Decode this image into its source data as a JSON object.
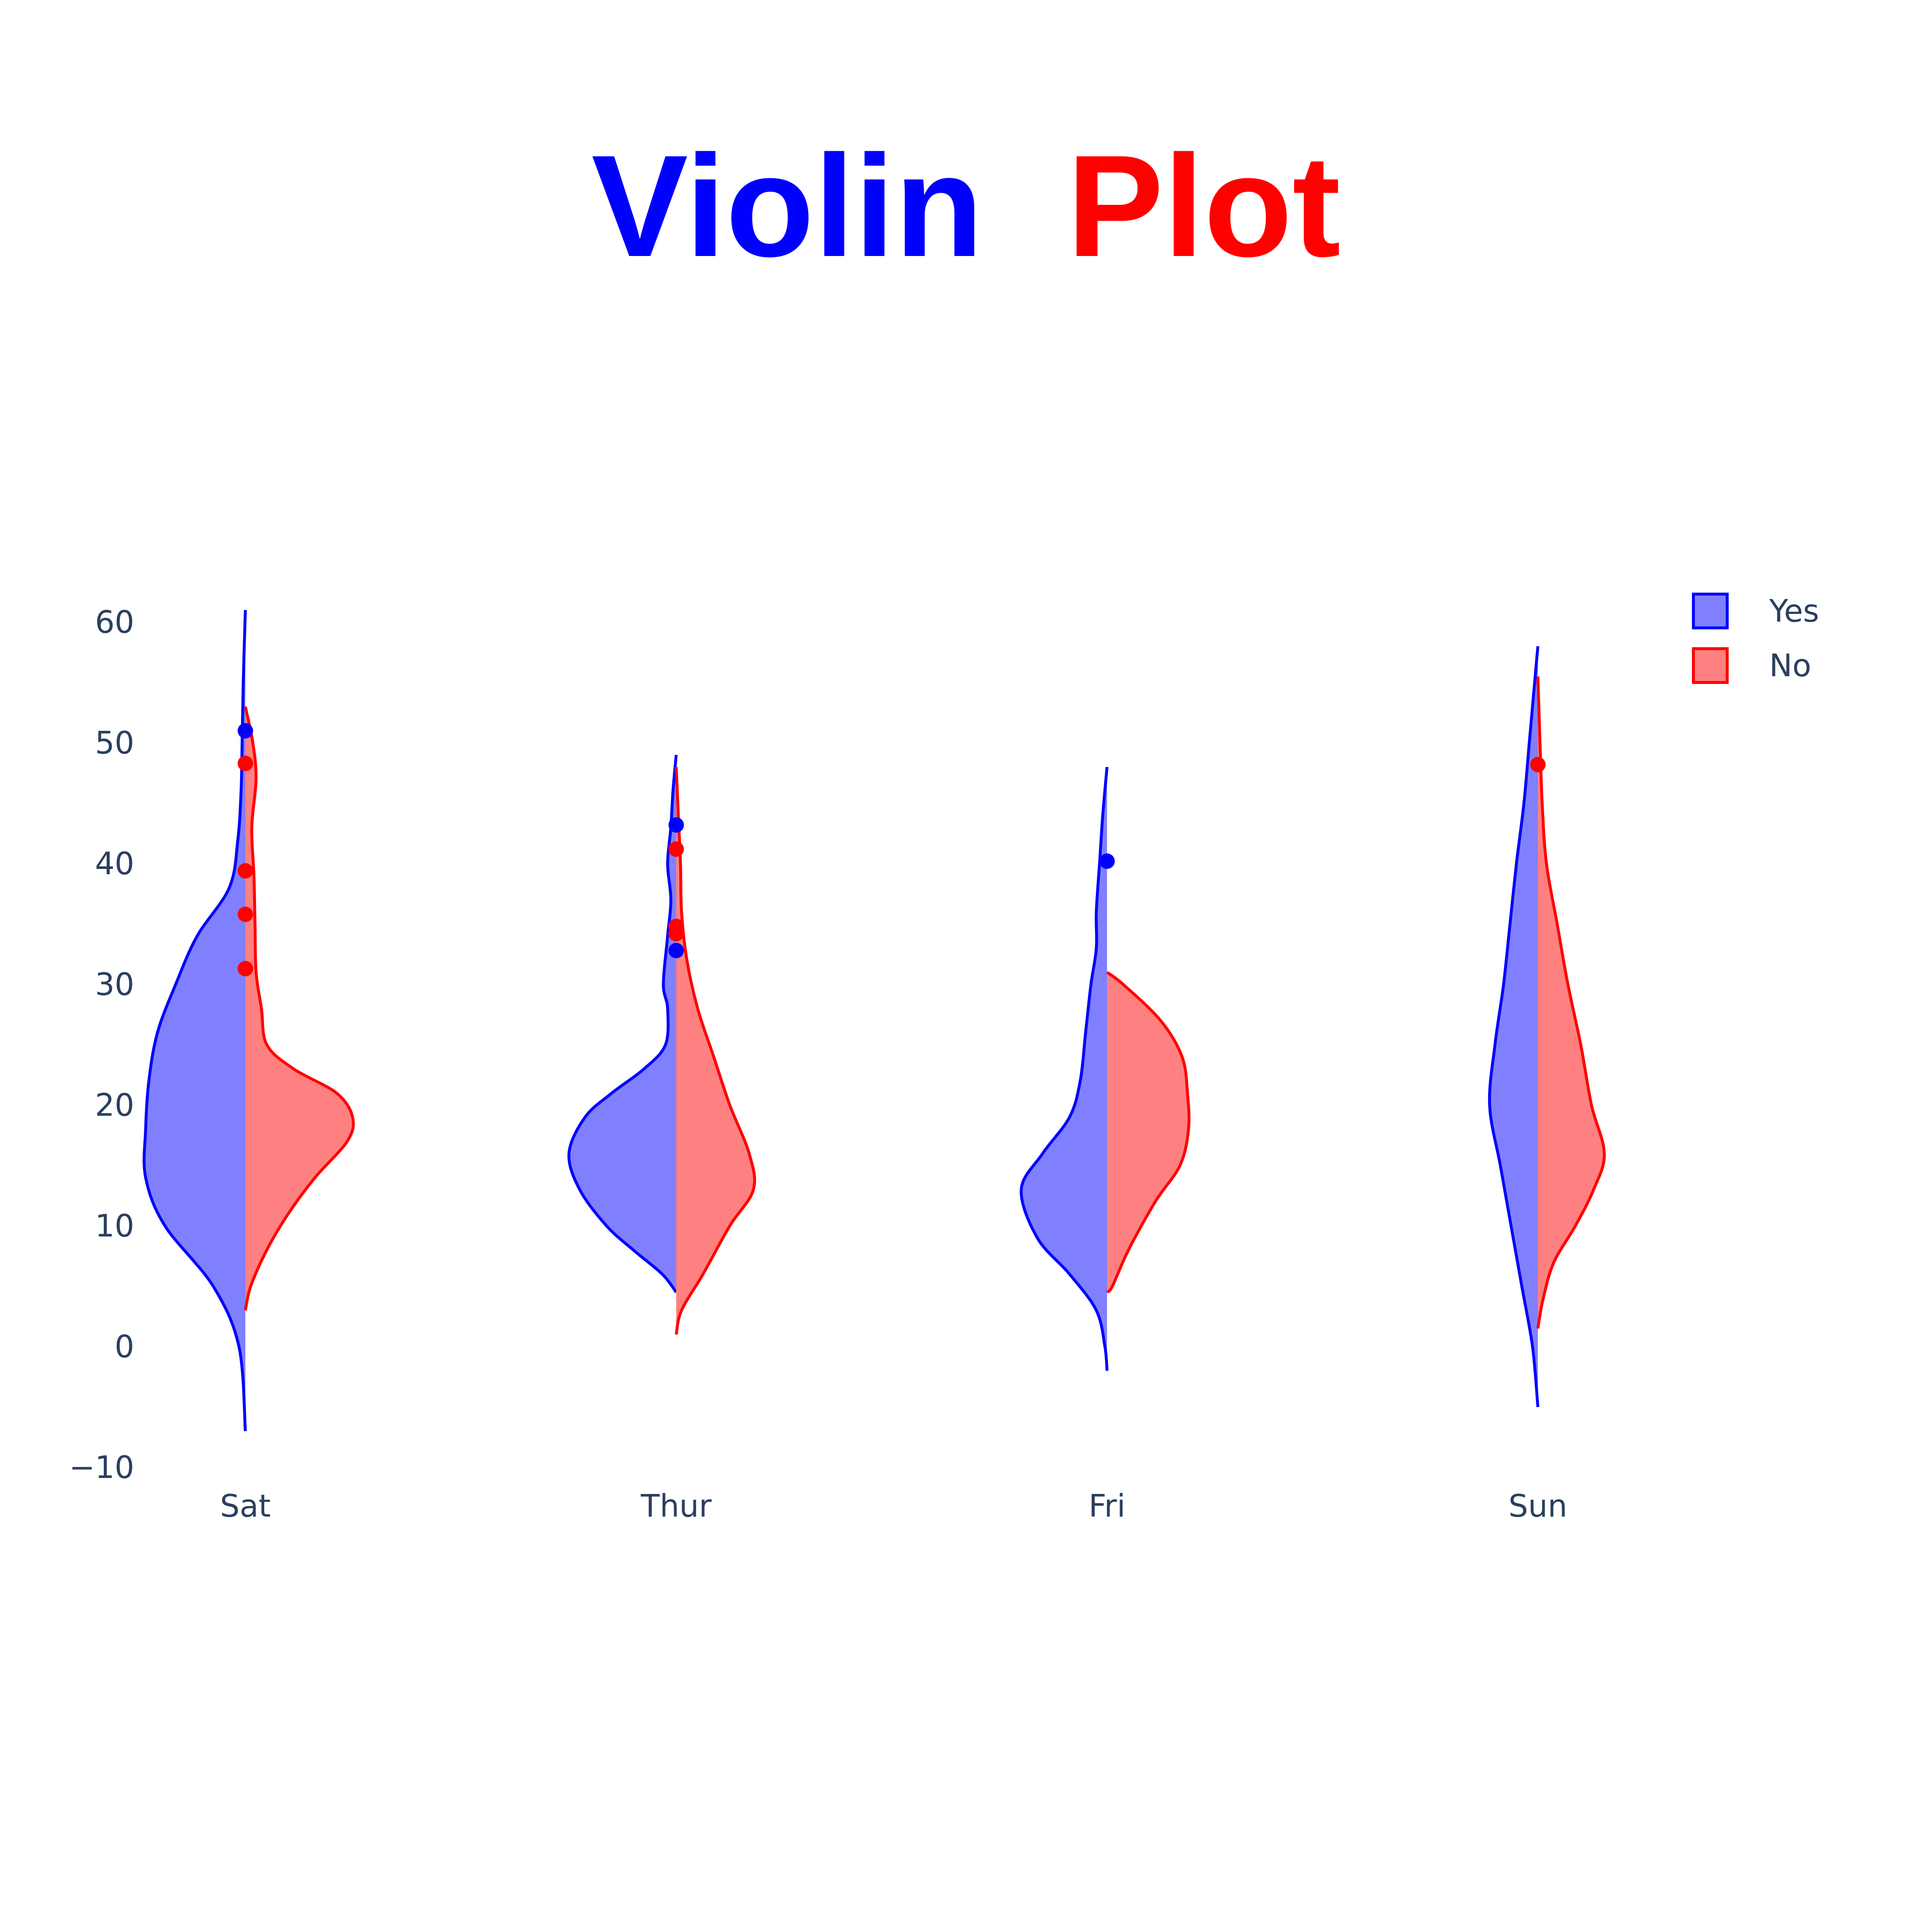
{
  "title": {
    "parts": [
      {
        "text": "Violin",
        "color": "#0000ff"
      },
      {
        "text": "Plot",
        "color": "#ff0000"
      }
    ]
  },
  "colors": {
    "yes_line": "#0000ff",
    "yes_fill": "#8080ff",
    "no_line": "#ff0000",
    "no_fill": "#ff8080",
    "tick_text": "#2a3f5f"
  },
  "chart_data": {
    "type": "violin",
    "split": true,
    "categories": [
      "Sat",
      "Thur",
      "Fri",
      "Sun"
    ],
    "yticks": [
      "−10",
      "0",
      "10",
      "20",
      "30",
      "40",
      "50",
      "60"
    ],
    "ytick_values": [
      -10,
      0,
      10,
      20,
      30,
      40,
      50,
      60
    ],
    "ylim": [
      -10,
      62
    ],
    "grid": false,
    "legend_position": "top-right",
    "series": [
      {
        "name": "Yes",
        "side": "negative",
        "line_color": "#0000ff",
        "fill_color": "#8080ff",
        "violins": [
          {
            "category": "Sat",
            "y_range": [
              -7,
              61
            ],
            "profile": [
              [
                -7,
                0.0
              ],
              [
                0,
                0.06
              ],
              [
                5,
                0.3
              ],
              [
                10,
                0.75
              ],
              [
                14,
                0.93
              ],
              [
                18,
                0.93
              ],
              [
                22,
                0.9
              ],
              [
                26,
                0.82
              ],
              [
                30,
                0.65
              ],
              [
                34,
                0.45
              ],
              [
                38,
                0.15
              ],
              [
                42,
                0.07
              ],
              [
                46,
                0.04
              ],
              [
                50,
                0.03
              ],
              [
                55,
                0.02
              ],
              [
                61,
                0.0
              ]
            ],
            "outliers": [
              51
            ]
          },
          {
            "category": "Thur",
            "y_range": [
              4.5,
              49
            ],
            "profile": [
              [
                4.5,
                0.0
              ],
              [
                6,
                0.13
              ],
              [
                8,
                0.4
              ],
              [
                10,
                0.65
              ],
              [
                13,
                0.9
              ],
              [
                16,
                1.0
              ],
              [
                19,
                0.85
              ],
              [
                21,
                0.6
              ],
              [
                23,
                0.3
              ],
              [
                25,
                0.1
              ],
              [
                28,
                0.08
              ],
              [
                30,
                0.12
              ],
              [
                34,
                0.08
              ],
              [
                37,
                0.05
              ],
              [
                40,
                0.08
              ],
              [
                43,
                0.05
              ],
              [
                46,
                0.03
              ],
              [
                49,
                0.0
              ]
            ],
            "outliers": [
              43.2,
              32.8
            ]
          },
          {
            "category": "Fri",
            "y_range": [
              -2,
              48
            ],
            "profile": [
              [
                -2,
                0.0
              ],
              [
                0,
                0.02
              ],
              [
                3,
                0.1
              ],
              [
                6,
                0.35
              ],
              [
                9,
                0.65
              ],
              [
                13,
                0.8
              ],
              [
                16,
                0.6
              ],
              [
                19,
                0.35
              ],
              [
                22,
                0.25
              ],
              [
                26,
                0.2
              ],
              [
                30,
                0.15
              ],
              [
                33,
                0.1
              ],
              [
                36,
                0.1
              ],
              [
                40,
                0.07
              ],
              [
                44,
                0.04
              ],
              [
                48,
                0.0
              ]
            ],
            "outliers": [
              40.2
            ]
          },
          {
            "category": "Sun",
            "y_range": [
              -5,
              58
            ],
            "profile": [
              [
                -5,
                0.0
              ],
              [
                0,
                0.05
              ],
              [
                5,
                0.15
              ],
              [
                10,
                0.25
              ],
              [
                15,
                0.35
              ],
              [
                20,
                0.45
              ],
              [
                25,
                0.4
              ],
              [
                30,
                0.32
              ],
              [
                35,
                0.26
              ],
              [
                40,
                0.2
              ],
              [
                45,
                0.13
              ],
              [
                50,
                0.08
              ],
              [
                55,
                0.03
              ],
              [
                58,
                0.0
              ]
            ],
            "outliers": []
          }
        ]
      },
      {
        "name": "No",
        "side": "positive",
        "line_color": "#ff0000",
        "fill_color": "#ff8080",
        "violins": [
          {
            "category": "Sat",
            "y_range": [
              3,
              53
            ],
            "profile": [
              [
                3,
                0.0
              ],
              [
                5,
                0.05
              ],
              [
                8,
                0.2
              ],
              [
                11,
                0.4
              ],
              [
                14,
                0.65
              ],
              [
                17,
                0.95
              ],
              [
                19,
                1.0
              ],
              [
                21,
                0.85
              ],
              [
                23,
                0.45
              ],
              [
                25,
                0.2
              ],
              [
                28,
                0.15
              ],
              [
                31,
                0.1
              ],
              [
                35,
                0.09
              ],
              [
                39,
                0.08
              ],
              [
                43,
                0.06
              ],
              [
                47,
                0.1
              ],
              [
                50,
                0.07
              ],
              [
                53,
                0.0
              ]
            ],
            "outliers": [
              48.3,
              39.4,
              35.8,
              31.3
            ]
          },
          {
            "category": "Thur",
            "y_range": [
              1,
              48
            ],
            "profile": [
              [
                1,
                0.0
              ],
              [
                3,
                0.05
              ],
              [
                6,
                0.25
              ],
              [
                10,
                0.5
              ],
              [
                13,
                0.72
              ],
              [
                16,
                0.68
              ],
              [
                20,
                0.5
              ],
              [
                24,
                0.35
              ],
              [
                28,
                0.2
              ],
              [
                32,
                0.1
              ],
              [
                36,
                0.05
              ],
              [
                40,
                0.04
              ],
              [
                44,
                0.02
              ],
              [
                48,
                0.0
              ]
            ],
            "outliers": [
              41.2,
              34.8,
              34.2
            ]
          },
          {
            "category": "Fri",
            "y_range": [
              4.5,
              31
            ],
            "profile": [
              [
                4.5,
                0.0
              ],
              [
                5,
                0.05
              ],
              [
                8,
                0.2
              ],
              [
                12,
                0.45
              ],
              [
                15,
                0.68
              ],
              [
                18,
                0.76
              ],
              [
                21,
                0.75
              ],
              [
                24,
                0.7
              ],
              [
                27,
                0.5
              ],
              [
                30,
                0.15
              ],
              [
                31,
                0.0
              ]
            ],
            "outliers": []
          },
          {
            "category": "Sun",
            "y_range": [
              1.5,
              55.5
            ],
            "profile": [
              [
                1.5,
                0.0
              ],
              [
                4,
                0.05
              ],
              [
                7,
                0.15
              ],
              [
                10,
                0.35
              ],
              [
                13,
                0.52
              ],
              [
                16,
                0.62
              ],
              [
                20,
                0.5
              ],
              [
                25,
                0.4
              ],
              [
                30,
                0.28
              ],
              [
                35,
                0.18
              ],
              [
                40,
                0.08
              ],
              [
                45,
                0.04
              ],
              [
                50,
                0.02
              ],
              [
                55.5,
                0.0
              ]
            ],
            "outliers": [
              48.2
            ]
          }
        ]
      }
    ]
  }
}
